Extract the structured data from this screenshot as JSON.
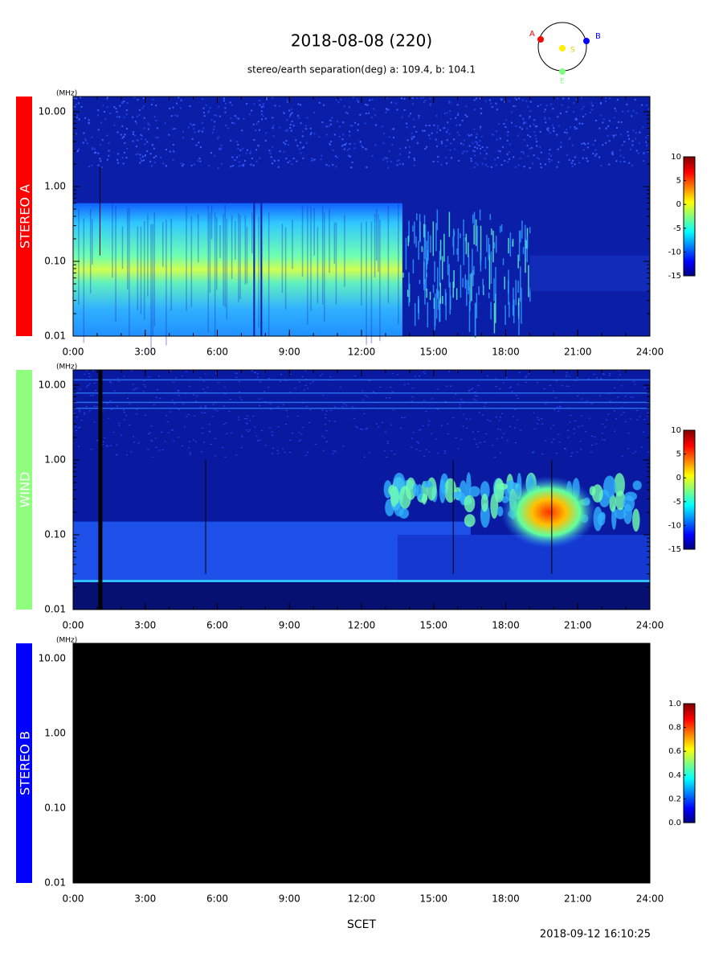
{
  "header": {
    "title": "2018-08-08 (220)",
    "subtitle": "stereo/earth separation(deg) a: 109.4, b: 104.1",
    "orbit": {
      "a": "A",
      "b": "B",
      "s": "S",
      "e": "E"
    }
  },
  "chart_data": [
    {
      "type": "spectrogram",
      "label": "STEREO A",
      "label_color": "#ff0000",
      "yunit": "(MHz)",
      "xlim": [
        0,
        24
      ],
      "xticks": [
        {
          "value": 0,
          "label": "0:00"
        },
        {
          "value": 3,
          "label": "3:00"
        },
        {
          "value": 6,
          "label": "6:00"
        },
        {
          "value": 9,
          "label": "9:00"
        },
        {
          "value": 12,
          "label": "12:00"
        },
        {
          "value": 15,
          "label": "15:00"
        },
        {
          "value": 18,
          "label": "18:00"
        },
        {
          "value": 21,
          "label": "21:00"
        },
        {
          "value": 24,
          "label": "24:00"
        }
      ],
      "ylim": [
        0.01,
        16
      ],
      "yscale": "log",
      "yticks": [
        0.01,
        {
          "value": 0.1,
          "label": "0.10"
        },
        {
          "value": 1,
          "label": "1.00"
        },
        {
          "value": 10,
          "label": "10.00"
        }
      ],
      "zlim": [
        -15,
        10
      ],
      "zticks": [
        -15,
        -10,
        -5,
        0,
        5,
        10
      ]
    },
    {
      "type": "spectrogram",
      "label": "WIND",
      "label_color": "#90ff80",
      "yunit": "(MHz)",
      "xlim": [
        0,
        24
      ],
      "xticks": [
        {
          "value": 0,
          "label": "0:00"
        },
        {
          "value": 3,
          "label": "3:00"
        },
        {
          "value": 6,
          "label": "6:00"
        },
        {
          "value": 9,
          "label": "9:00"
        },
        {
          "value": 12,
          "label": "12:00"
        },
        {
          "value": 15,
          "label": "15:00"
        },
        {
          "value": 18,
          "label": "18:00"
        },
        {
          "value": 21,
          "label": "21:00"
        },
        {
          "value": 24,
          "label": "24:00"
        }
      ],
      "ylim": [
        0.01,
        16
      ],
      "yscale": "log",
      "yticks": [
        0.01,
        {
          "value": 0.1,
          "label": "0.10"
        },
        {
          "value": 1,
          "label": "1.00"
        },
        {
          "value": 10,
          "label": "10.00"
        }
      ],
      "zlim": [
        -15,
        10
      ],
      "zticks": [
        -15,
        -10,
        -5,
        0,
        5,
        10
      ]
    },
    {
      "type": "spectrogram",
      "label": "STEREO B",
      "label_color": "#0000ff",
      "yunit": "(MHz)",
      "xlim": [
        0,
        24
      ],
      "xticks": [
        {
          "value": 0,
          "label": "0:00"
        },
        {
          "value": 3,
          "label": "3:00"
        },
        {
          "value": 6,
          "label": "6:00"
        },
        {
          "value": 9,
          "label": "9:00"
        },
        {
          "value": 12,
          "label": "12:00"
        },
        {
          "value": 15,
          "label": "15:00"
        },
        {
          "value": 18,
          "label": "18:00"
        },
        {
          "value": 21,
          "label": "21:00"
        },
        {
          "value": 24,
          "label": "24:00"
        }
      ],
      "ylim": [
        0.01,
        16
      ],
      "yscale": "log",
      "yticks": [
        0.01,
        {
          "value": 0.1,
          "label": "0.10"
        },
        {
          "value": 1,
          "label": "1.00"
        },
        {
          "value": 10,
          "label": "10.00"
        }
      ],
      "zlim": [
        0,
        1
      ],
      "zticks": [
        {
          "value": 0,
          "label": "0.0"
        },
        0.2,
        0.4,
        0.6,
        0.8,
        {
          "value": 1,
          "label": "1.0"
        }
      ]
    }
  ],
  "xlabel": "SCET",
  "timestamp": "2018-09-12 16:10:25"
}
